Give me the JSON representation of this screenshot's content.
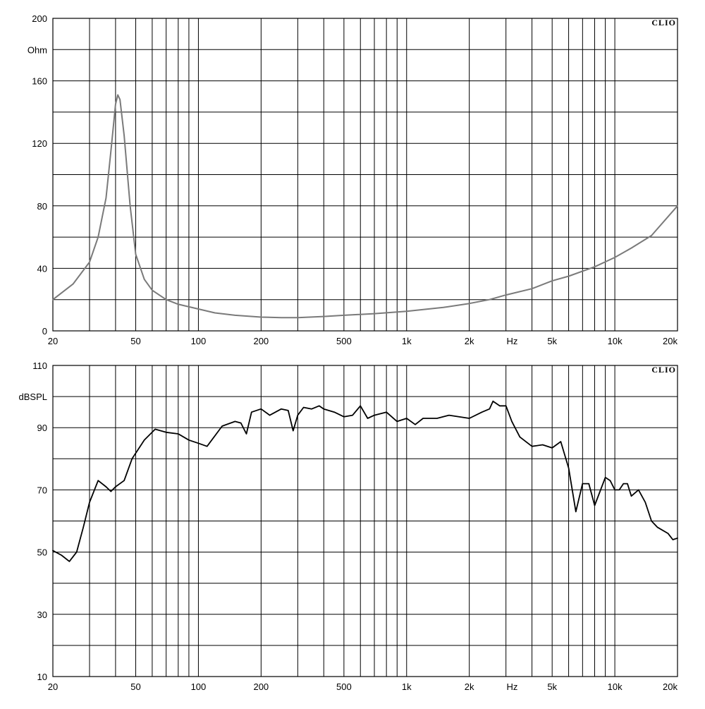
{
  "chart_data": [
    {
      "type": "line",
      "ylabel": "Ohm",
      "xlabel": "Hz",
      "brand": "CLIO",
      "x_scale": "log",
      "xlim": [
        20,
        20000
      ],
      "ylim": [
        0,
        200
      ],
      "y_ticks": [
        0,
        40,
        80,
        120,
        160,
        200
      ],
      "x_tick_labels": [
        {
          "value": 20,
          "label": "20"
        },
        {
          "value": 50,
          "label": "50"
        },
        {
          "value": 100,
          "label": "100"
        },
        {
          "value": 200,
          "label": "200"
        },
        {
          "value": 500,
          "label": "500"
        },
        {
          "value": 1000,
          "label": "1k"
        },
        {
          "value": 2000,
          "label": "2k"
        },
        {
          "value": 5000,
          "label": "5k"
        },
        {
          "value": 10000,
          "label": "10k"
        },
        {
          "value": 20000,
          "label": "20k"
        }
      ],
      "grid": true,
      "line_color": "#7a7a7a",
      "series": [
        {
          "x": [
            20,
            25,
            30,
            33,
            36,
            38,
            40,
            41,
            42,
            44,
            47,
            50,
            55,
            60,
            70,
            80,
            100,
            120,
            150,
            200,
            250,
            300,
            400,
            500,
            700,
            1000,
            1500,
            2000,
            2500,
            3000,
            4000,
            5000,
            6000,
            8000,
            10000,
            12000,
            15000,
            20000
          ],
          "y": [
            20,
            30,
            44,
            60,
            85,
            115,
            145,
            151,
            148,
            125,
            80,
            49,
            33,
            26,
            20,
            17,
            14,
            11.5,
            10,
            8.8,
            8.5,
            8.5,
            9.2,
            10,
            11,
            12.5,
            15,
            17.5,
            20,
            23,
            27,
            32,
            35,
            41,
            47,
            53,
            61,
            80
          ]
        }
      ]
    },
    {
      "type": "line",
      "ylabel": "dBSPL",
      "xlabel": "Hz",
      "brand": "CLIO",
      "x_scale": "log",
      "xlim": [
        20,
        20000
      ],
      "ylim": [
        10,
        110
      ],
      "y_ticks": [
        10,
        30,
        50,
        70,
        90,
        110
      ],
      "x_tick_labels": [
        {
          "value": 20,
          "label": "20"
        },
        {
          "value": 50,
          "label": "50"
        },
        {
          "value": 100,
          "label": "100"
        },
        {
          "value": 200,
          "label": "200"
        },
        {
          "value": 500,
          "label": "500"
        },
        {
          "value": 1000,
          "label": "1k"
        },
        {
          "value": 2000,
          "label": "2k"
        },
        {
          "value": 5000,
          "label": "5k"
        },
        {
          "value": 10000,
          "label": "10k"
        },
        {
          "value": 20000,
          "label": "20k"
        }
      ],
      "grid": true,
      "line_color": "#000000",
      "series": [
        {
          "x": [
            20,
            22,
            24,
            26,
            28,
            30,
            33,
            36,
            38,
            40,
            44,
            48,
            55,
            62,
            70,
            80,
            90,
            100,
            110,
            130,
            150,
            160,
            170,
            180,
            200,
            220,
            250,
            270,
            285,
            300,
            320,
            350,
            380,
            400,
            450,
            500,
            550,
            600,
            650,
            700,
            800,
            900,
            1000,
            1100,
            1200,
            1400,
            1600,
            2000,
            2300,
            2500,
            2600,
            2800,
            3000,
            3200,
            3500,
            4000,
            4500,
            5000,
            5500,
            6000,
            6500,
            7000,
            7500,
            8000,
            9000,
            9500,
            10000,
            10500,
            11000,
            11500,
            12000,
            13000,
            14000,
            15000,
            16000,
            18000,
            19000,
            20000
          ],
          "y": [
            50.5,
            49,
            47,
            50,
            58,
            66,
            73,
            71,
            69.5,
            71,
            73,
            80,
            86,
            89.5,
            88.5,
            88,
            86,
            85,
            84,
            90.5,
            92,
            91.5,
            88,
            95,
            96,
            94,
            96,
            95.5,
            89,
            94,
            96.5,
            96,
            97,
            96,
            95,
            93.5,
            94,
            97,
            93,
            94,
            95,
            92,
            93,
            91,
            93,
            93,
            94,
            93,
            95,
            96,
            98.5,
            97,
            97,
            92,
            87,
            84,
            84.5,
            83.5,
            85.5,
            77,
            63,
            72,
            72,
            65,
            74,
            73,
            70,
            70,
            72,
            72,
            68,
            70,
            66,
            60,
            58,
            56,
            54,
            54.5
          ]
        }
      ]
    }
  ]
}
